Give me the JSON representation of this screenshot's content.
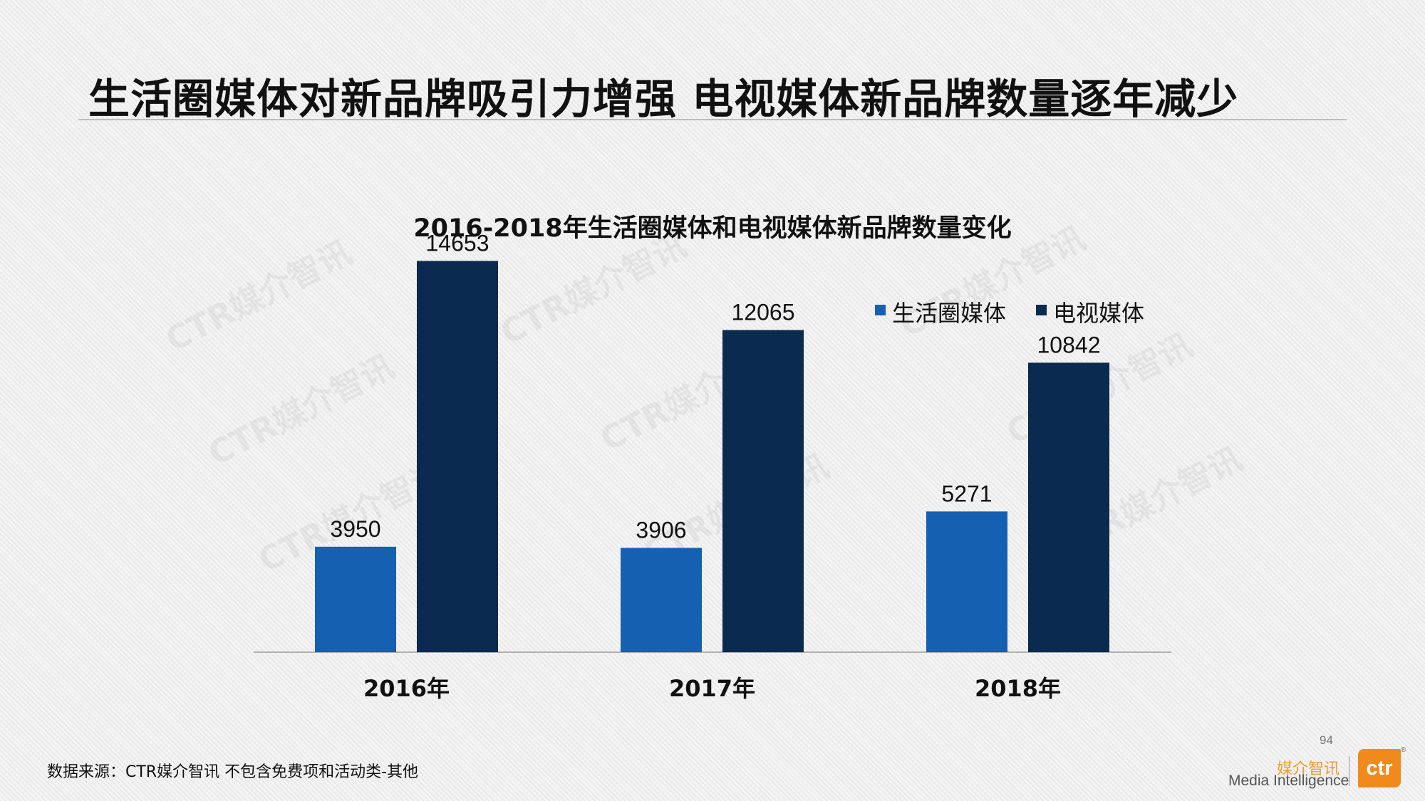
{
  "slide": {
    "title": "生活圈媒体对新品牌吸引力增强 电视媒体新品牌数量逐年减少",
    "source": "数据来源：CTR媒介智讯    不包含免费项和活动类-其他",
    "page_number": "94",
    "watermark": "CTR媒介智讯",
    "logo": {
      "cn": "媒介智讯",
      "en": "Media Intelligence",
      "mark": "ctr",
      "reg": "®"
    }
  },
  "colors": {
    "life_circle": "#1660b2",
    "tv": "#0b2a4f",
    "logo_orange": "#f08a1c"
  },
  "chart_data": {
    "type": "bar",
    "title": "2016-2018年生活圈媒体和电视媒体新品牌数量变化",
    "categories": [
      "2016年",
      "2017年",
      "2018年"
    ],
    "series": [
      {
        "name": "生活圈媒体",
        "values": [
          3950,
          3906,
          5271
        ],
        "color": "#1660b2"
      },
      {
        "name": "电视媒体",
        "values": [
          14653,
          12065,
          10842
        ],
        "color": "#0b2a4f"
      }
    ],
    "xlabel": "",
    "ylabel": "",
    "ylim": [
      0,
      16000
    ],
    "grid": false,
    "legend_position": "top-right",
    "data_labels": true
  }
}
